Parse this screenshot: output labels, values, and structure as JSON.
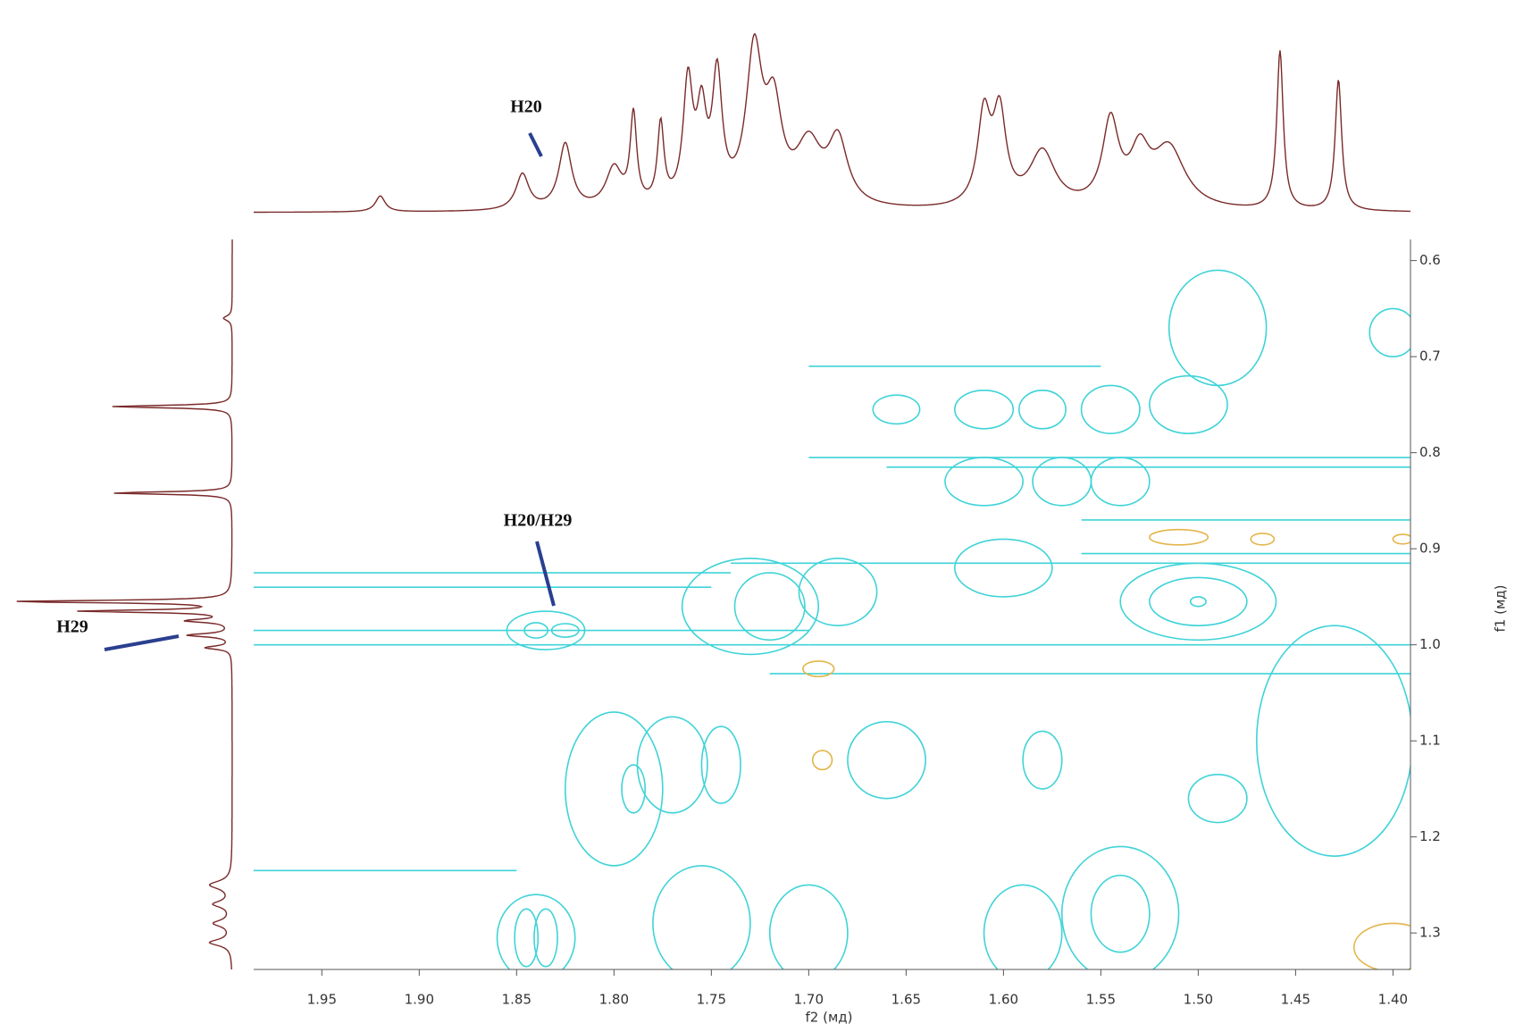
{
  "chart_data": {
    "type": "contour2d",
    "x_label": "f2 (мд)",
    "y_label": "f1 (мд)",
    "xlim": [
      1.985,
      1.391
    ],
    "xticks": [
      {
        "value": 1.95,
        "label": "1.95"
      },
      {
        "value": 1.9,
        "label": "1.90"
      },
      1.85,
      {
        "value": 1.8,
        "label": "1.80"
      },
      1.75,
      {
        "value": 1.7,
        "label": "1.70"
      },
      1.65,
      {
        "value": 1.6,
        "label": "1.60"
      },
      1.55,
      {
        "value": 1.5,
        "label": "1.50"
      },
      1.45,
      {
        "value": 1.4,
        "label": "1.40"
      }
    ],
    "ylim": [
      0.578,
      1.338
    ],
    "yticks": [
      0.6,
      0.7,
      0.8,
      0.9,
      {
        "value": 1.0,
        "label": "1.0"
      },
      1.1,
      1.2,
      1.3
    ],
    "top_spectrum": {
      "color": "#7a2a2a",
      "x": [
        1.92,
        1.847,
        1.825,
        1.8,
        1.79,
        1.776,
        1.762,
        1.755,
        1.747,
        1.728,
        1.718,
        1.7,
        1.685,
        1.61,
        1.602,
        1.58,
        1.545,
        1.53,
        1.515,
        1.458,
        1.428
      ],
      "heights": [
        0.08,
        0.18,
        0.33,
        0.2,
        0.45,
        0.4,
        0.6,
        0.42,
        0.62,
        0.75,
        0.45,
        0.3,
        0.32,
        0.45,
        0.45,
        0.28,
        0.42,
        0.25,
        0.3,
        0.8,
        0.66
      ],
      "widths": [
        0.003,
        0.004,
        0.004,
        0.005,
        0.002,
        0.002,
        0.003,
        0.003,
        0.003,
        0.005,
        0.005,
        0.008,
        0.006,
        0.004,
        0.004,
        0.008,
        0.005,
        0.006,
        0.01,
        0.002,
        0.002
      ]
    },
    "left_spectrum": {
      "color": "#7a2a2a",
      "y": [
        0.66,
        0.752,
        0.842,
        0.955,
        0.965,
        0.975,
        0.99,
        1.003,
        1.25,
        1.27,
        1.29,
        1.31
      ],
      "heights": [
        0.04,
        0.55,
        0.55,
        1.0,
        0.68,
        0.2,
        0.2,
        0.12,
        0.1,
        0.08,
        0.08,
        0.1
      ],
      "widths": [
        0.003,
        0.0015,
        0.0015,
        0.0015,
        0.0015,
        0.002,
        0.002,
        0.002,
        0.005,
        0.004,
        0.004,
        0.004
      ]
    },
    "contours": [
      {
        "x": 1.73,
        "y": 0.96,
        "rx": 0.035,
        "ry": 0.05,
        "color": "#3fd3d8"
      },
      {
        "x": 1.72,
        "y": 0.96,
        "rx": 0.018,
        "ry": 0.035,
        "color": "#3fd3d8"
      },
      {
        "x": 1.685,
        "y": 0.945,
        "rx": 0.02,
        "ry": 0.035,
        "color": "#3fd3d8"
      },
      {
        "x": 1.835,
        "y": 0.985,
        "rx": 0.02,
        "ry": 0.02,
        "color": "#3fd3d8"
      },
      {
        "x": 1.825,
        "y": 0.985,
        "rx": 0.007,
        "ry": 0.007,
        "color": "#3fd3d8"
      },
      {
        "x": 1.84,
        "y": 0.985,
        "rx": 0.006,
        "ry": 0.008,
        "color": "#3fd3d8"
      },
      {
        "x": 1.5,
        "y": 0.955,
        "rx": 0.04,
        "ry": 0.04,
        "color": "#3fd3d8"
      },
      {
        "x": 1.5,
        "y": 0.955,
        "rx": 0.025,
        "ry": 0.025,
        "color": "#3fd3d8"
      },
      {
        "x": 1.5,
        "y": 0.955,
        "rx": 0.004,
        "ry": 0.005,
        "color": "#3fd3d8"
      },
      {
        "x": 1.61,
        "y": 0.755,
        "rx": 0.015,
        "ry": 0.02,
        "color": "#3fd3d8"
      },
      {
        "x": 1.58,
        "y": 0.755,
        "rx": 0.012,
        "ry": 0.02,
        "color": "#3fd3d8"
      },
      {
        "x": 1.545,
        "y": 0.755,
        "rx": 0.015,
        "ry": 0.025,
        "color": "#3fd3d8"
      },
      {
        "x": 1.505,
        "y": 0.75,
        "rx": 0.02,
        "ry": 0.03,
        "color": "#3fd3d8"
      },
      {
        "x": 1.49,
        "y": 0.67,
        "rx": 0.025,
        "ry": 0.06,
        "color": "#3fd3d8"
      },
      {
        "x": 1.4,
        "y": 0.675,
        "rx": 0.012,
        "ry": 0.025,
        "color": "#3fd3d8"
      },
      {
        "x": 1.655,
        "y": 0.755,
        "rx": 0.012,
        "ry": 0.015,
        "color": "#3fd3d8"
      },
      {
        "x": 1.61,
        "y": 0.83,
        "rx": 0.02,
        "ry": 0.025,
        "color": "#3fd3d8"
      },
      {
        "x": 1.57,
        "y": 0.83,
        "rx": 0.015,
        "ry": 0.025,
        "color": "#3fd3d8"
      },
      {
        "x": 1.54,
        "y": 0.83,
        "rx": 0.015,
        "ry": 0.025,
        "color": "#3fd3d8"
      },
      {
        "x": 1.6,
        "y": 0.92,
        "rx": 0.025,
        "ry": 0.03,
        "color": "#3fd3d8"
      },
      {
        "x": 1.77,
        "y": 1.125,
        "rx": 0.018,
        "ry": 0.05,
        "color": "#3fd3d8"
      },
      {
        "x": 1.745,
        "y": 1.125,
        "rx": 0.01,
        "ry": 0.04,
        "color": "#3fd3d8"
      },
      {
        "x": 1.8,
        "y": 1.15,
        "rx": 0.025,
        "ry": 0.08,
        "color": "#3fd3d8"
      },
      {
        "x": 1.79,
        "y": 1.15,
        "rx": 0.006,
        "ry": 0.025,
        "color": "#3fd3d8"
      },
      {
        "x": 1.835,
        "y": 1.305,
        "rx": 0.006,
        "ry": 0.03,
        "color": "#3fd3d8"
      },
      {
        "x": 1.845,
        "y": 1.305,
        "rx": 0.006,
        "ry": 0.03,
        "color": "#3fd3d8"
      },
      {
        "x": 1.84,
        "y": 1.305,
        "rx": 0.02,
        "ry": 0.045,
        "color": "#3fd3d8"
      },
      {
        "x": 1.54,
        "y": 1.28,
        "rx": 0.015,
        "ry": 0.04,
        "color": "#3fd3d8"
      },
      {
        "x": 1.54,
        "y": 1.28,
        "rx": 0.03,
        "ry": 0.07,
        "color": "#3fd3d8"
      },
      {
        "x": 1.49,
        "y": 1.16,
        "rx": 0.015,
        "ry": 0.025,
        "color": "#3fd3d8"
      },
      {
        "x": 1.66,
        "y": 1.12,
        "rx": 0.02,
        "ry": 0.04,
        "color": "#3fd3d8"
      },
      {
        "x": 1.58,
        "y": 1.12,
        "rx": 0.01,
        "ry": 0.03,
        "color": "#3fd3d8"
      },
      {
        "x": 1.43,
        "y": 1.1,
        "rx": 0.04,
        "ry": 0.12,
        "color": "#3fd3d8"
      },
      {
        "x": 1.755,
        "y": 1.29,
        "rx": 0.025,
        "ry": 0.06,
        "color": "#3fd3d8"
      },
      {
        "x": 1.7,
        "y": 1.3,
        "rx": 0.02,
        "ry": 0.05,
        "color": "#3fd3d8"
      },
      {
        "x": 1.59,
        "y": 1.3,
        "rx": 0.02,
        "ry": 0.05,
        "color": "#3fd3d8"
      },
      {
        "x": 1.51,
        "y": 0.888,
        "rx": 0.015,
        "ry": 0.008,
        "color": "#e3b54a"
      },
      {
        "x": 1.467,
        "y": 0.89,
        "rx": 0.006,
        "ry": 0.006,
        "color": "#e3b54a"
      },
      {
        "x": 1.395,
        "y": 0.89,
        "rx": 0.005,
        "ry": 0.005,
        "color": "#e3b54a"
      },
      {
        "x": 1.695,
        "y": 1.025,
        "rx": 0.008,
        "ry": 0.008,
        "color": "#e3b54a"
      },
      {
        "x": 1.693,
        "y": 1.12,
        "rx": 0.005,
        "ry": 0.01,
        "color": "#e3b54a"
      },
      {
        "x": 1.4,
        "y": 1.315,
        "rx": 0.02,
        "ry": 0.025,
        "color": "#e3b54a"
      }
    ],
    "streaks": [
      {
        "y": 0.925,
        "x0": 1.985,
        "x1": 1.74
      },
      {
        "y": 0.94,
        "x0": 1.985,
        "x1": 1.75
      },
      {
        "y": 0.985,
        "x0": 1.985,
        "x1": 1.7
      },
      {
        "y": 1.0,
        "x0": 1.985,
        "x1": 1.7
      },
      {
        "y": 1.235,
        "x0": 1.985,
        "x1": 1.85
      },
      {
        "y": 0.71,
        "x0": 1.7,
        "x1": 1.55
      },
      {
        "y": 0.805,
        "x0": 1.7,
        "x1": 1.391
      },
      {
        "y": 0.815,
        "x0": 1.66,
        "x1": 1.391
      },
      {
        "y": 0.87,
        "x0": 1.56,
        "x1": 1.391
      },
      {
        "y": 0.905,
        "x0": 1.56,
        "x1": 1.391
      },
      {
        "y": 0.915,
        "x0": 1.74,
        "x1": 1.391
      },
      {
        "y": 1.0,
        "x0": 1.7,
        "x1": 1.391
      },
      {
        "y": 1.03,
        "x0": 1.72,
        "x1": 1.391
      }
    ],
    "streak_color": "#3fd3d8",
    "annotations": [
      "H20",
      "H20/H29",
      "H29"
    ]
  }
}
